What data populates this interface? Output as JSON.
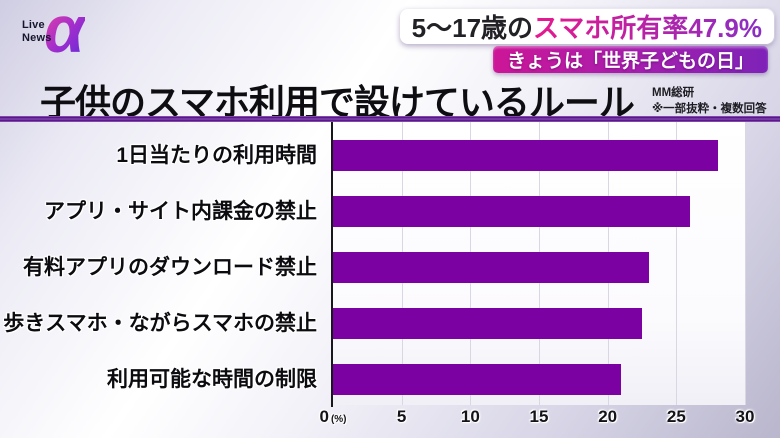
{
  "logo": {
    "line1": "Live",
    "line2": "News",
    "alpha": "α"
  },
  "header": {
    "stat_prefix": "5～17歳の",
    "stat_highlight": "スマホ所有率47.9%",
    "banner": "きょうは「世界子どもの日」"
  },
  "title": "子供のスマホ利用で設けているルール",
  "source": {
    "name": "MM総研",
    "note": "※一部抜粋・複数回答"
  },
  "chart_data": {
    "type": "bar",
    "orientation": "horizontal",
    "title": "子供のスマホ利用で設けているルール",
    "categories": [
      "1日当たりの利用時間",
      "アプリ・サイト内課金の禁止",
      "有料アプリのダウンロード禁止",
      "歩きスマホ・ながらスマホの禁止",
      "利用可能な時間の制限"
    ],
    "values": [
      28,
      26,
      23,
      22.5,
      21
    ],
    "unit": "(%)",
    "xlim": [
      0,
      30
    ],
    "xticks": [
      0,
      5,
      10,
      15,
      20,
      25,
      30
    ],
    "grid": true,
    "legend": false,
    "bar_color": "#7c01a2"
  },
  "colors": {
    "bar": "#7c01a2",
    "banner_pink": "#cd1697",
    "banner_purple": "#7e22b8",
    "divider": "#4c0c7e",
    "background_light": "#ffffff",
    "background_dark": "#b9b6cd"
  }
}
